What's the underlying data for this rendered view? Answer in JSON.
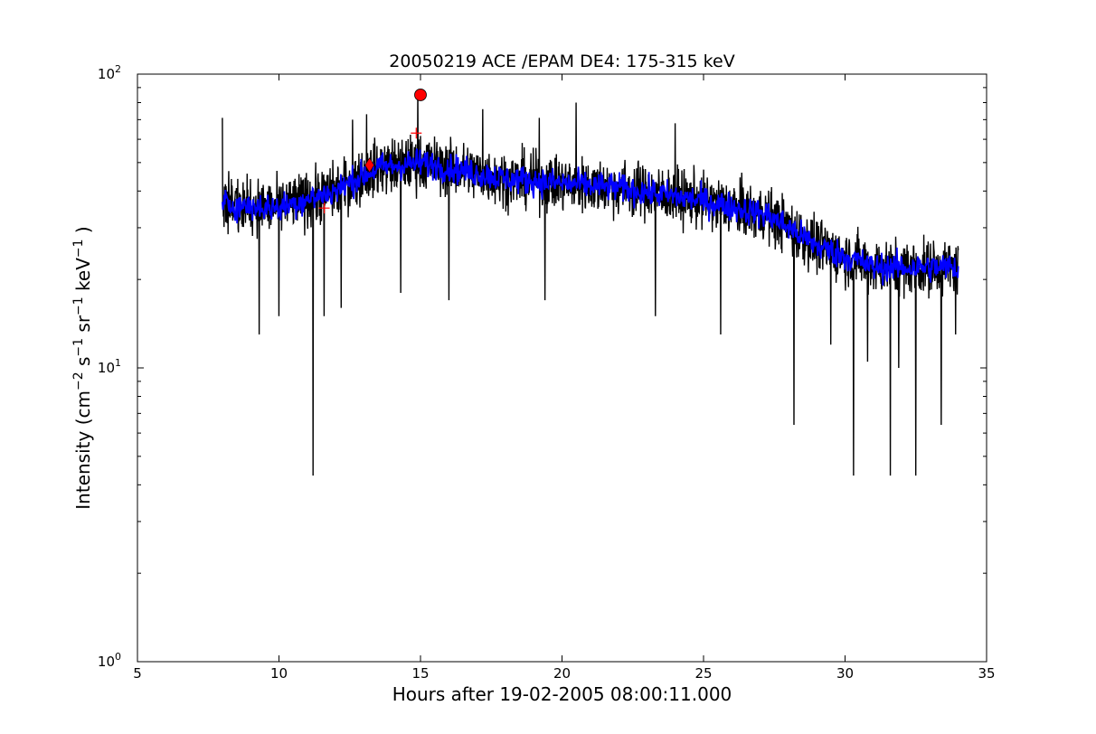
{
  "chart_data": {
    "type": "line",
    "title": "20050219 ACE /EPAM DE4: 175-315 keV",
    "xlabel": "Hours after 19-02-2005 08:00:11.000",
    "ylabel_parts": [
      "Intensity (cm",
      "−2",
      " s",
      "−1",
      " sr",
      "−1",
      " keV",
      "−1",
      " )"
    ],
    "xlim": [
      5,
      35
    ],
    "ylim": [
      1,
      100
    ],
    "yscale": "log",
    "grid": false,
    "x_ticks": [
      5,
      10,
      15,
      20,
      25,
      30,
      35
    ],
    "x_tick_labels": [
      "5",
      "10",
      "15",
      "20",
      "25",
      "30",
      "35"
    ],
    "y_ticks": [
      1,
      10,
      100
    ],
    "y_tick_labels": [
      {
        "base": "10",
        "exp": "0"
      },
      {
        "base": "10",
        "exp": "1"
      },
      {
        "base": "10",
        "exp": "2"
      }
    ],
    "series": [
      {
        "color": "#000000",
        "style": "raw",
        "x_range": [
          8.0,
          34.0
        ],
        "trend": [
          [
            8.0,
            36
          ],
          [
            10.0,
            35
          ],
          [
            12.0,
            40
          ],
          [
            13.5,
            48
          ],
          [
            15.0,
            50
          ],
          [
            18.0,
            44
          ],
          [
            22.0,
            41
          ],
          [
            25.0,
            37
          ],
          [
            27.3,
            33
          ],
          [
            29.0,
            26
          ],
          [
            31.0,
            22
          ],
          [
            34.0,
            22
          ]
        ],
        "spikes_down": [
          [
            9.3,
            13
          ],
          [
            10.0,
            15
          ],
          [
            11.2,
            4.3
          ],
          [
            11.6,
            15
          ],
          [
            12.2,
            16
          ],
          [
            14.3,
            18
          ],
          [
            16.0,
            17
          ],
          [
            19.4,
            17
          ],
          [
            23.3,
            15
          ],
          [
            25.6,
            13
          ],
          [
            28.2,
            6.4
          ],
          [
            29.5,
            12
          ],
          [
            30.3,
            4.3
          ],
          [
            30.8,
            10.5
          ],
          [
            31.6,
            4.3
          ],
          [
            31.9,
            10
          ],
          [
            32.5,
            4.3
          ],
          [
            33.4,
            6.4
          ],
          [
            33.9,
            13
          ]
        ],
        "spikes_up": [
          [
            8.0,
            71
          ],
          [
            12.6,
            70
          ],
          [
            13.1,
            73
          ],
          [
            14.9,
            88
          ],
          [
            17.2,
            76
          ],
          [
            19.2,
            71
          ],
          [
            20.5,
            80
          ],
          [
            24.0,
            68
          ]
        ]
      },
      {
        "color": "#0000ff",
        "style": "smoothed",
        "x_range": [
          8.0,
          34.0
        ],
        "trend": [
          [
            8.0,
            36
          ],
          [
            10.0,
            35
          ],
          [
            12.0,
            40
          ],
          [
            13.5,
            48
          ],
          [
            15.0,
            50
          ],
          [
            18.0,
            44
          ],
          [
            22.0,
            41
          ],
          [
            25.0,
            37
          ],
          [
            27.3,
            33
          ],
          [
            29.0,
            26
          ],
          [
            31.0,
            22
          ],
          [
            34.0,
            22
          ]
        ]
      }
    ],
    "markers": [
      {
        "shape": "circle",
        "x": 15.0,
        "y": 85,
        "color": "#ff0000"
      },
      {
        "shape": "diamond",
        "x": 13.2,
        "y": 49,
        "color": "#ff0000"
      },
      {
        "shape": "plus",
        "x": 14.85,
        "y": 63,
        "color": "#ff0000"
      },
      {
        "shape": "plus",
        "x": 11.6,
        "y": 35,
        "color": "#ff0000"
      }
    ]
  }
}
